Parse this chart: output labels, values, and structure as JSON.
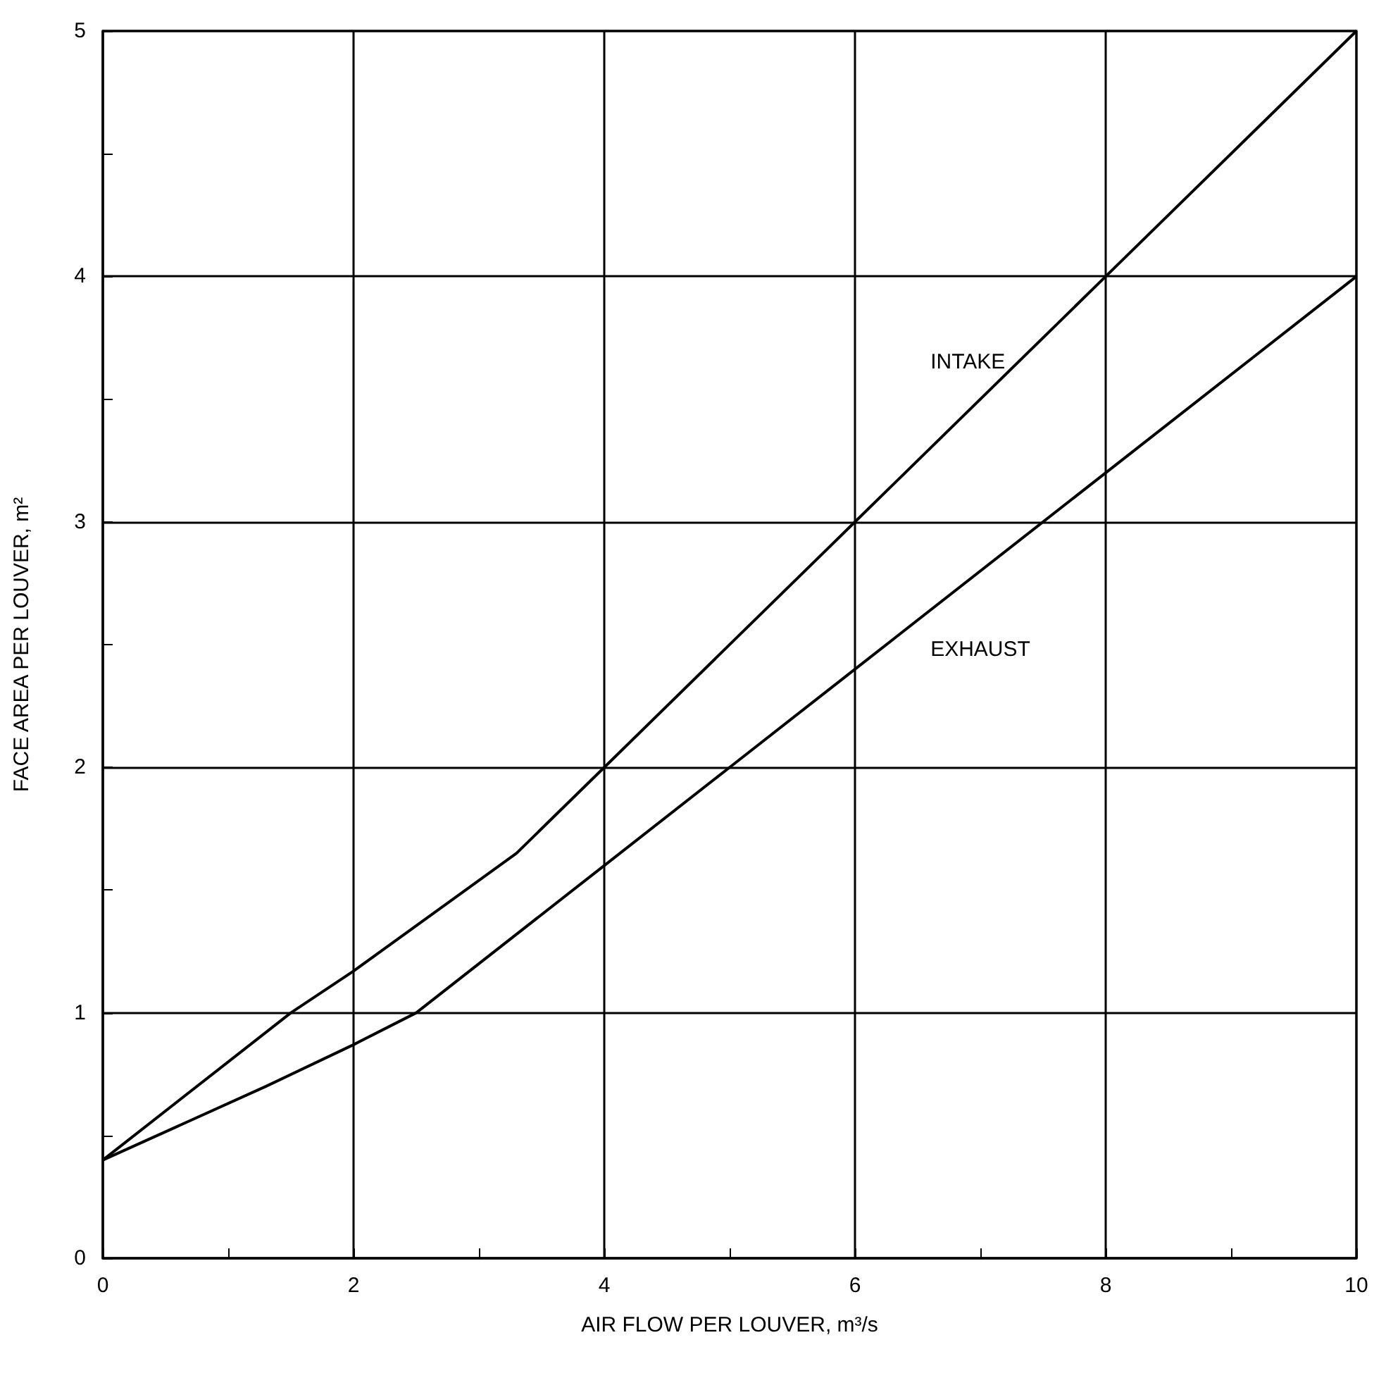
{
  "chart_data": {
    "type": "line",
    "xlabel": "AIR FLOW PER LOUVER, m³/s",
    "ylabel": "FACE AREA PER LOUVER, m²",
    "xlim": [
      0,
      10
    ],
    "ylim": [
      0,
      5
    ],
    "xticks": [
      0,
      {
        "value": 1,
        "label": null
      },
      2,
      {
        "value": 3,
        "label": null
      },
      4,
      {
        "value": 5,
        "label": null
      },
      6,
      {
        "value": 7,
        "label": null
      },
      8,
      {
        "value": 9,
        "label": null
      },
      10
    ],
    "yticks": [
      0,
      {
        "value": 0.5,
        "label": null
      },
      1,
      {
        "value": 1.5,
        "label": null
      },
      2,
      {
        "value": 2.5,
        "label": null
      },
      3,
      {
        "value": 3.5,
        "label": null
      },
      4,
      {
        "value": 4.5,
        "label": null
      },
      5
    ],
    "grid": true,
    "marker": "none",
    "line_style": "solid",
    "series": [
      {
        "color": "#000000",
        "x": [
          0,
          1.5,
          2,
          3.3,
          4,
          6,
          8,
          10
        ],
        "values": [
          0.4,
          1.0,
          1.17,
          1.65,
          2.0,
          3.0,
          4.0,
          5.0
        ]
      },
      {
        "color": "#000000",
        "x": [
          0,
          1.3,
          2,
          2.5,
          4,
          5,
          6,
          8,
          10
        ],
        "values": [
          0.4,
          0.7,
          0.87,
          1.0,
          1.6,
          2.0,
          2.4,
          3.2,
          4.0
        ]
      }
    ],
    "annotations": [
      "INTAKE",
      "EXHAUST"
    ]
  }
}
